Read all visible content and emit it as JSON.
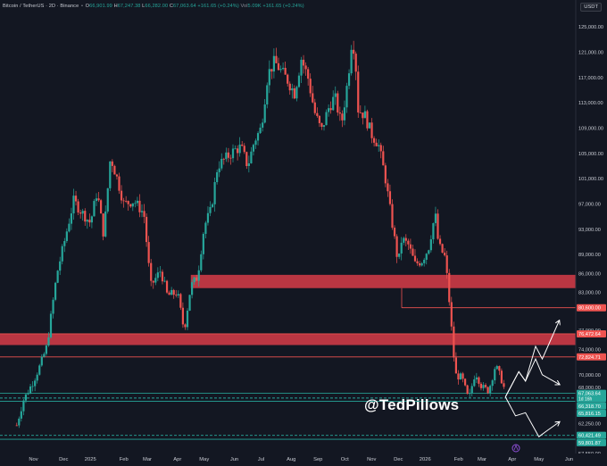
{
  "header": {
    "symbol": "Bitcoin / TetherUS · 2D · Binance",
    "open_label": "O",
    "open": "66,901.99",
    "high_label": "H",
    "high": "67,247.38",
    "low_label": "L",
    "low": "66,282.00",
    "close_label": "C",
    "close": "67,063.64",
    "change": "+161.65 (+0.24%)",
    "vol_label": "Vol",
    "volume": "5.09K",
    "vol_change": "+161.65 (+0.24%)"
  },
  "currency": "USDT",
  "watermark": "@TedPillows",
  "colors": {
    "background": "#131722",
    "up": "#26a69a",
    "down": "#ef5350",
    "zone": "#c93a45",
    "support": "#26a69a",
    "resistance": "#ef5350"
  },
  "chart_data": {
    "type": "candlestick",
    "symbol": "BTC/USDT",
    "timeframe": "2D",
    "exchange": "Binance",
    "x_ticks": [
      "Nov",
      "Dec",
      "2025",
      "Feb",
      "Mar",
      "Apr",
      "May",
      "Jun",
      "Jul",
      "Aug",
      "Sep",
      "Oct",
      "Nov",
      "Dec",
      "2026",
      "Feb",
      "Mar",
      "Apr",
      "May",
      "Jun"
    ],
    "y_ticks": [
      "125,000.00",
      "121,000.00",
      "117,000.00",
      "113,000.00",
      "109,000.00",
      "105,000.00",
      "101,000.00",
      "97,000.00",
      "93,000.00",
      "89,000.00",
      "86,000.00",
      "83,000.00",
      "77,000.00",
      "74,000.00",
      "70,000.00",
      "68,000.00",
      "64,000.00",
      "62,250.00",
      "59,500.00",
      "57,550.00"
    ],
    "ylim": [
      57550,
      127000
    ],
    "series_path": [
      [
        2024.78,
        62000
      ],
      [
        2024.8,
        66000
      ],
      [
        2024.83,
        69000
      ],
      [
        2024.85,
        71500
      ],
      [
        2024.87,
        74500
      ],
      [
        2024.9,
        86000
      ],
      [
        2024.92,
        90500
      ],
      [
        2024.95,
        97500
      ],
      [
        2024.97,
        96000
      ],
      [
        2025.0,
        94000
      ],
      [
        2025.02,
        99000
      ],
      [
        2025.04,
        92000
      ],
      [
        2025.06,
        104500
      ],
      [
        2025.08,
        101000
      ],
      [
        2025.1,
        97000
      ],
      [
        2025.13,
        97500
      ],
      [
        2025.16,
        95500
      ],
      [
        2025.18,
        84000
      ],
      [
        2025.21,
        86500
      ],
      [
        2025.23,
        82500
      ],
      [
        2025.26,
        83000
      ],
      [
        2025.28,
        77000
      ],
      [
        2025.3,
        84000
      ],
      [
        2025.32,
        85500
      ],
      [
        2025.34,
        93500
      ],
      [
        2025.36,
        96000
      ],
      [
        2025.38,
        103000
      ],
      [
        2025.4,
        104000
      ],
      [
        2025.43,
        105500
      ],
      [
        2025.45,
        106000
      ],
      [
        2025.47,
        103000
      ],
      [
        2025.49,
        107000
      ],
      [
        2025.51,
        109000
      ],
      [
        2025.53,
        117500
      ],
      [
        2025.55,
        119500
      ],
      [
        2025.57,
        118000
      ],
      [
        2025.59,
        116500
      ],
      [
        2025.61,
        114500
      ],
      [
        2025.63,
        120000
      ],
      [
        2025.65,
        117000
      ],
      [
        2025.67,
        111500
      ],
      [
        2025.69,
        108500
      ],
      [
        2025.71,
        112000
      ],
      [
        2025.73,
        114000
      ],
      [
        2025.75,
        109500
      ],
      [
        2025.77,
        117000
      ],
      [
        2025.78,
        122500
      ],
      [
        2025.79,
        121500
      ],
      [
        2025.8,
        112000
      ],
      [
        2025.82,
        111000
      ],
      [
        2025.84,
        108000
      ],
      [
        2025.86,
        106500
      ],
      [
        2025.88,
        101500
      ],
      [
        2025.9,
        94500
      ],
      [
        2025.92,
        87500
      ],
      [
        2025.93,
        91500
      ],
      [
        2025.95,
        90500
      ],
      [
        2025.97,
        87500
      ],
      [
        2025.99,
        88000
      ],
      [
        2026.01,
        90000
      ],
      [
        2026.03,
        95500
      ],
      [
        2026.04,
        90500
      ],
      [
        2026.06,
        88500
      ],
      [
        2026.07,
        83000
      ],
      [
        2026.09,
        70000
      ],
      [
        2026.11,
        69500
      ],
      [
        2026.13,
        66000
      ],
      [
        2026.15,
        70500
      ],
      [
        2026.17,
        68000
      ],
      [
        2026.19,
        67500
      ],
      [
        2026.21,
        71500
      ],
      [
        2026.23,
        69000
      ],
      [
        2026.24,
        67063.64
      ]
    ],
    "last_price": 67063.64,
    "zones": [
      {
        "low": 83700,
        "high": 85800
      },
      {
        "low": 74700,
        "high": 76500
      }
    ],
    "levels": [
      {
        "value": 80600.0,
        "label": "80,600.00",
        "color": "#ef5350"
      },
      {
        "value": 76472.64,
        "label": "76,472.64",
        "color": "#ef5350"
      },
      {
        "value": 72824.71,
        "label": "72,824.71",
        "color": "#ef5350"
      },
      {
        "value": 67063.64,
        "label": "67,063.64",
        "sub": "1d 16h",
        "color": "#26a69a"
      },
      {
        "value": 66318.7,
        "label": "66,318.70",
        "color": "#26a69a"
      },
      {
        "value": 65816.15,
        "label": "65,816.15",
        "color": "#26a69a"
      },
      {
        "value": 60421.49,
        "label": "60,421.49",
        "color": "#26a69a"
      },
      {
        "value": 59801.87,
        "label": "59,801.87",
        "color": "#26a69a"
      }
    ],
    "scenarios": [
      [
        [
          2026.24,
          66500
        ],
        [
          2026.28,
          70500
        ],
        [
          2026.3,
          69000
        ],
        [
          2026.33,
          74500
        ],
        [
          2026.35,
          72500
        ],
        [
          2026.4,
          78500
        ]
      ],
      [
        [
          2026.24,
          66500
        ],
        [
          2026.28,
          70500
        ],
        [
          2026.3,
          69000
        ],
        [
          2026.33,
          72500
        ],
        [
          2026.35,
          70000
        ],
        [
          2026.4,
          68500
        ]
      ],
      [
        [
          2026.24,
          66500
        ],
        [
          2026.27,
          63500
        ],
        [
          2026.3,
          64000
        ],
        [
          2026.34,
          60200
        ],
        [
          2026.36,
          61000
        ],
        [
          2026.4,
          62500
        ]
      ]
    ]
  }
}
